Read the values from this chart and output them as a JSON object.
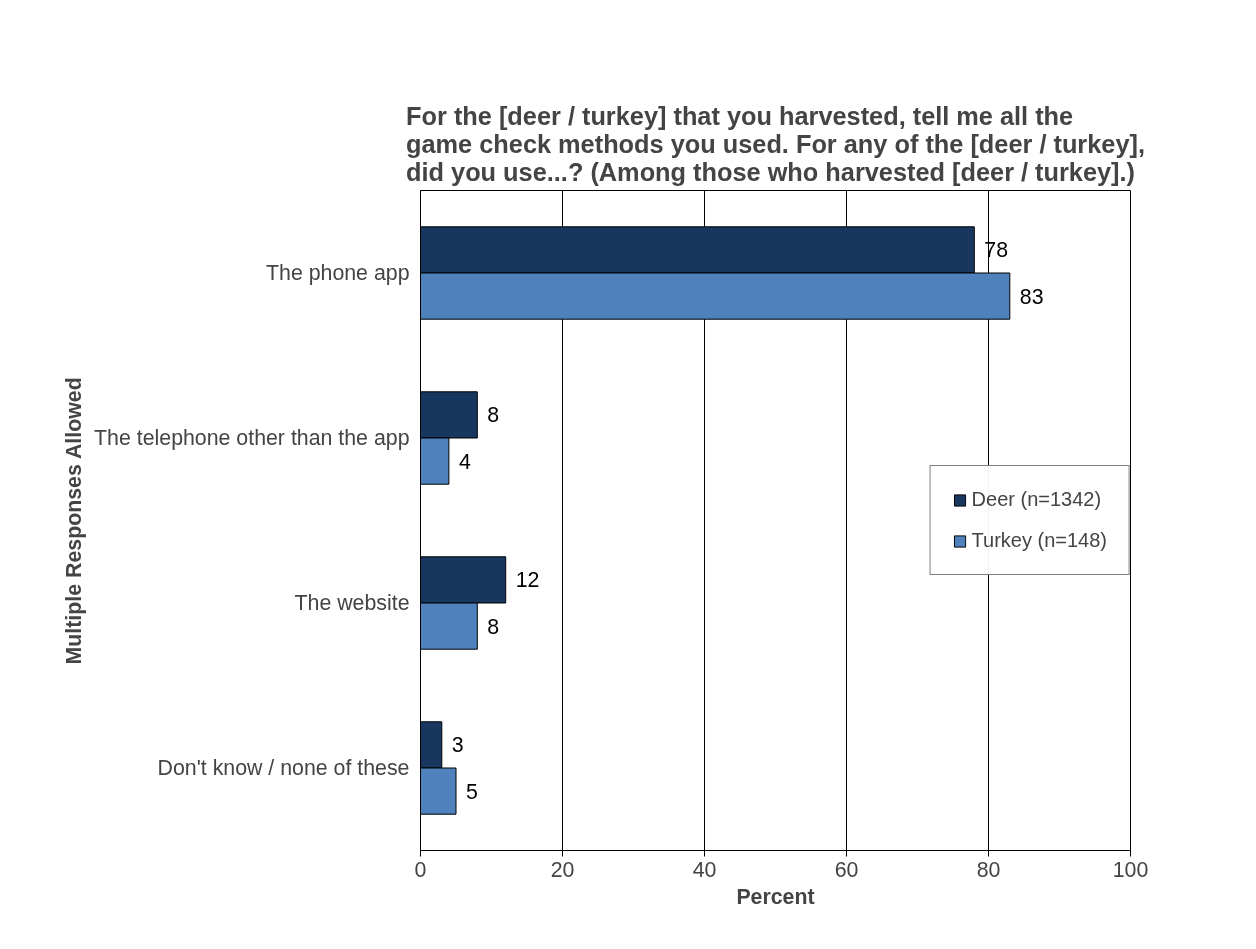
{
  "chart_data": {
    "type": "bar",
    "orientation": "horizontal",
    "title": "For the [deer / turkey] that you harvested, tell me all the game check methods you used. For any of the [deer / turkey], did you use...? (Among those who harvested [deer / turkey].)",
    "xlabel": "Percent",
    "ylabel": "Multiple Responses Allowed",
    "categories": [
      "The phone app",
      "The telephone other than the app",
      "The website",
      "Don't know / none of these"
    ],
    "series": [
      {
        "name": "Deer (n=1342)",
        "color": "#17375e",
        "values": [
          78,
          8,
          12,
          3
        ]
      },
      {
        "name": "Turkey (n=148)",
        "color": "#4f81bd",
        "values": [
          83,
          4,
          8,
          5
        ]
      }
    ],
    "xlim": [
      0,
      100
    ],
    "xticks": [
      0,
      20,
      40,
      60,
      80,
      100
    ],
    "grid": "x",
    "legend": "right",
    "data_labels": true
  }
}
